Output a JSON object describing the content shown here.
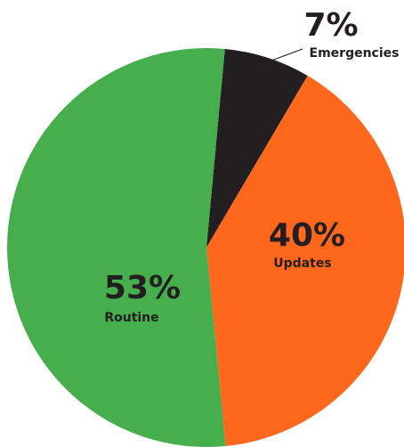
{
  "chart_data": {
    "type": "pie",
    "categories": [
      "Emergencies",
      "Updates",
      "Routine"
    ],
    "values": [
      7,
      40,
      53
    ],
    "value_labels": [
      "7%",
      "40%",
      "53%"
    ],
    "colors": [
      "#231f20",
      "#ff671d",
      "#46ae4c"
    ]
  }
}
